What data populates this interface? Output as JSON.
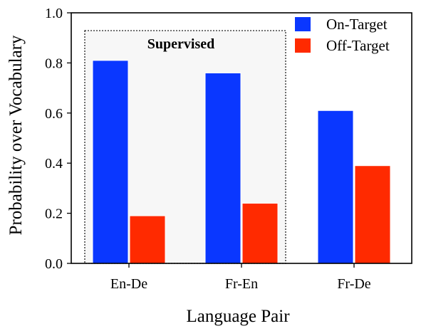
{
  "chart_data": {
    "type": "bar",
    "xlabel": "Language Pair",
    "ylabel": "Probability over Vocabulary",
    "categories": [
      "En-De",
      "Fr-En",
      "Fr-De"
    ],
    "series": [
      {
        "name": "On-Target",
        "color": "#0a37ff",
        "values": [
          0.81,
          0.76,
          0.61
        ]
      },
      {
        "name": "Off-Target",
        "color": "#ff2a00",
        "values": [
          0.19,
          0.24,
          0.39
        ]
      }
    ],
    "ylim": [
      0,
      1.0
    ],
    "yticks": [
      "0.0",
      "0.2",
      "0.4",
      "0.6",
      "0.8",
      "1.0"
    ],
    "legend_position": "top-right",
    "grid": false,
    "annotation": {
      "label": "Supervised",
      "spans_categories": [
        "En-De",
        "Fr-En"
      ],
      "style": "dotted box, light gray fill"
    }
  }
}
